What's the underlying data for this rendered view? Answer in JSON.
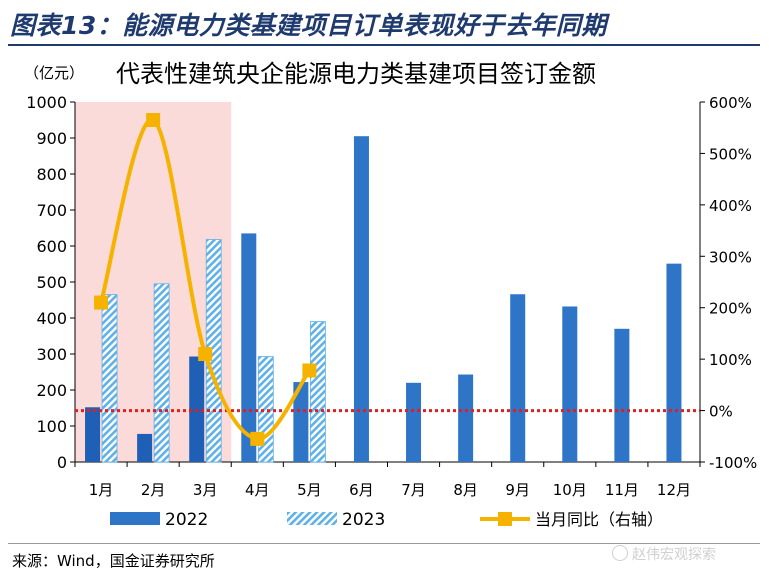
{
  "figure_title": "图表13：能源电力类基建项目订单表现好于去年同期",
  "source": "来源：Wind，国金证券研究所",
  "watermark": "赵伟宏观探索",
  "colors": {
    "bar_2022": "#2e75c8",
    "bar_2022_highlight": "#1f5fb5",
    "bar_2023": "#5fb1e8",
    "line": "#f5b300",
    "zero_line": "#e02020",
    "highlight_band": "#fbdada",
    "title": "#1f3a6e"
  },
  "chart_data": {
    "type": "bar",
    "title": "代表性建筑央企能源电力类基建项目签订金额",
    "ylabel": "（亿元）",
    "categories": [
      "1月",
      "2月",
      "3月",
      "4月",
      "5月",
      "6月",
      "7月",
      "8月",
      "9月",
      "10月",
      "11月",
      "12月"
    ],
    "ylim": [
      0,
      1000
    ],
    "yticks": [
      0,
      100,
      200,
      300,
      400,
      500,
      600,
      700,
      800,
      900,
      1000
    ],
    "y2lim": [
      -100,
      600
    ],
    "y2ticks": [
      "-100%",
      "0%",
      "100%",
      "200%",
      "300%",
      "400%",
      "500%",
      "600%"
    ],
    "highlight_months": [
      "1月",
      "2月",
      "3月"
    ],
    "series": [
      {
        "name": "2022",
        "type": "bar",
        "values": [
          152,
          78,
          293,
          635,
          222,
          905,
          220,
          243,
          466,
          432,
          370,
          551
        ]
      },
      {
        "name": "2023",
        "type": "bar",
        "hatched": true,
        "values": [
          465,
          495,
          618,
          293,
          390,
          null,
          null,
          null,
          null,
          null,
          null,
          null
        ]
      },
      {
        "name": "当月同比（右轴）",
        "type": "line",
        "axis": "right",
        "values": [
          210,
          565,
          110,
          -55,
          78,
          null,
          null,
          null,
          null,
          null,
          null,
          null
        ]
      }
    ],
    "reference_line": {
      "axis": "right",
      "value": 0,
      "style": "dotted"
    },
    "legend_position": "bottom"
  }
}
